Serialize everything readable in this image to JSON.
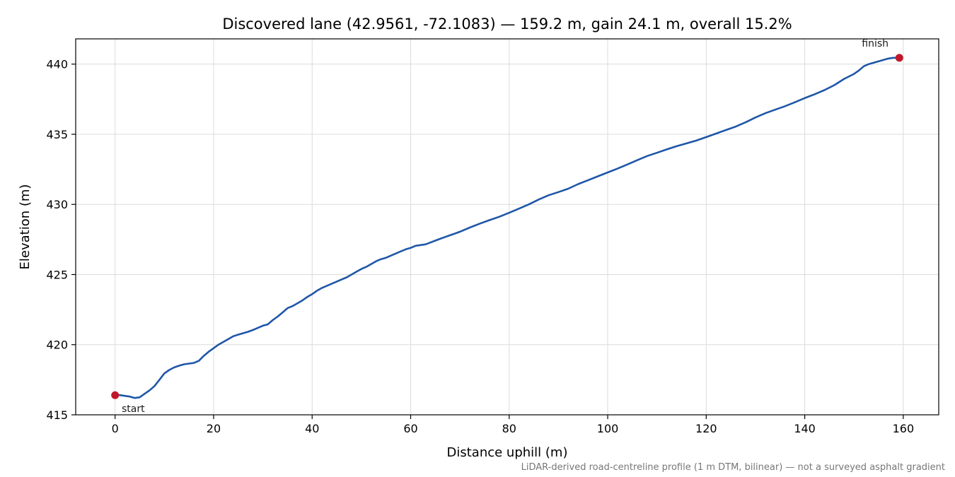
{
  "chart_data": {
    "type": "line",
    "title": "Discovered lane (42.9561, -72.1083) — 159.2 m, gain 24.1 m, overall 15.2%",
    "xlabel": "Distance uphill (m)",
    "ylabel": "Elevation (m)",
    "xlim": [
      -8,
      167.2
    ],
    "ylim": [
      415,
      441.8
    ],
    "xticks": [
      0,
      20,
      40,
      60,
      80,
      100,
      120,
      140,
      160
    ],
    "yticks": [
      415,
      420,
      425,
      430,
      435,
      440
    ],
    "grid": true,
    "series": [
      {
        "color": "#1f57a8",
        "x": [
          0,
          1,
          2,
          3,
          4,
          5,
          6,
          7,
          8,
          9,
          10,
          11,
          12,
          13,
          14,
          15,
          16,
          17,
          18,
          19,
          20,
          21,
          22,
          23,
          24,
          25,
          26,
          27,
          28,
          29,
          30,
          31,
          32,
          33,
          34,
          35,
          36,
          37,
          38,
          39,
          40,
          41,
          42,
          43,
          44,
          45,
          46,
          47,
          48,
          49,
          50,
          51,
          52,
          53,
          54,
          55,
          56,
          57,
          58,
          59,
          60,
          61,
          62,
          63,
          64,
          65,
          66,
          67,
          68,
          69,
          70,
          72,
          74,
          76,
          78,
          80,
          82,
          84,
          86,
          88,
          90,
          92,
          94,
          96,
          98,
          100,
          102,
          104,
          106,
          108,
          110,
          112,
          114,
          116,
          118,
          120,
          122,
          124,
          126,
          128,
          130,
          132,
          134,
          136,
          138,
          140,
          142,
          144,
          146,
          148,
          150,
          151,
          152,
          153,
          154,
          155,
          156,
          157,
          158,
          159.2
        ],
        "y": [
          416.4,
          416.4,
          416.35,
          416.3,
          416.2,
          416.25,
          416.5,
          416.75,
          417.05,
          417.5,
          417.95,
          418.2,
          418.38,
          418.5,
          418.6,
          418.65,
          418.7,
          418.85,
          419.2,
          419.5,
          419.75,
          420.0,
          420.2,
          420.4,
          420.6,
          420.72,
          420.82,
          420.92,
          421.05,
          421.2,
          421.35,
          421.45,
          421.75,
          422.0,
          422.3,
          422.6,
          422.75,
          422.95,
          423.15,
          423.4,
          423.6,
          423.85,
          424.05,
          424.2,
          424.35,
          424.5,
          424.65,
          424.8,
          425.0,
          425.2,
          425.4,
          425.55,
          425.75,
          425.95,
          426.1,
          426.2,
          426.35,
          426.5,
          426.65,
          426.8,
          426.9,
          427.05,
          427.1,
          427.15,
          427.28,
          427.42,
          427.55,
          427.68,
          427.8,
          427.92,
          428.05,
          428.35,
          428.62,
          428.88,
          429.12,
          429.4,
          429.7,
          430.0,
          430.35,
          430.65,
          430.88,
          431.12,
          431.45,
          431.72,
          432.0,
          432.28,
          432.55,
          432.85,
          433.15,
          433.45,
          433.68,
          433.92,
          434.15,
          434.35,
          434.55,
          434.8,
          435.05,
          435.3,
          435.55,
          435.85,
          436.2,
          436.5,
          436.75,
          437.0,
          437.28,
          437.58,
          437.85,
          438.15,
          438.5,
          438.95,
          439.3,
          439.55,
          439.85,
          440.0,
          440.1,
          440.2,
          440.3,
          440.4,
          440.45,
          440.45
        ]
      }
    ],
    "markers": [
      {
        "name": "start",
        "x": 0,
        "y": 416.4,
        "color": "#c0182b"
      },
      {
        "name": "finish",
        "x": 159.2,
        "y": 440.45,
        "color": "#c0182b"
      }
    ],
    "annotations": {
      "start": "start",
      "finish": "finish"
    },
    "footnote": "LiDAR-derived road-centreline profile (1 m DTM, bilinear) — not a surveyed asphalt gradient"
  }
}
